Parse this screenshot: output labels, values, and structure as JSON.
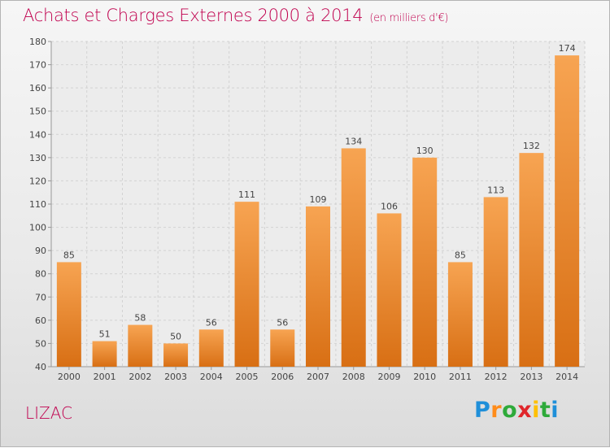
{
  "header": {
    "title": "Achats et Charges Externes 2000 à 2014",
    "unit": "(en milliers d'€)"
  },
  "footer": {
    "place": "LIZAC",
    "logo": "Proxiti"
  },
  "colors": {
    "title": "#c0004e",
    "bar_light": "#f7a452",
    "bar_dark": "#d86f14",
    "grid": "#d2d2d2"
  },
  "chart_data": {
    "type": "bar",
    "title": "Achats et Charges Externes 2000 à 2014",
    "subtitle": "(en milliers d'€)",
    "xlabel": "",
    "ylabel": "",
    "categories": [
      "2000",
      "2001",
      "2002",
      "2003",
      "2004",
      "2005",
      "2006",
      "2007",
      "2008",
      "2009",
      "2010",
      "2011",
      "2012",
      "2013",
      "2014"
    ],
    "values": [
      85,
      51,
      58,
      50,
      56,
      111,
      56,
      109,
      134,
      106,
      130,
      85,
      113,
      132,
      174
    ],
    "ylim": [
      40,
      180
    ],
    "yticks": [
      40,
      50,
      60,
      70,
      80,
      90,
      100,
      110,
      120,
      130,
      140,
      150,
      160,
      170,
      180
    ],
    "grid": true,
    "data_labels": true
  }
}
